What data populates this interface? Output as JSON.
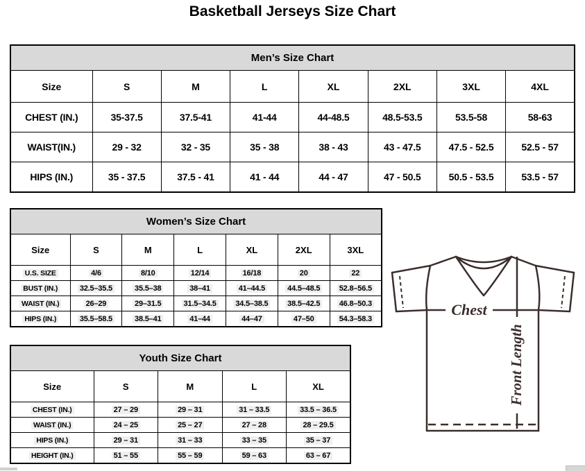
{
  "title": "Basketball Jerseys Size Chart",
  "tables": {
    "men": {
      "title": "Men’s Size Chart",
      "columns": [
        "Size",
        "S",
        "M",
        "L",
        "XL",
        "2XL",
        "3XL",
        "4XL"
      ],
      "rows": [
        {
          "label": "CHEST (IN.)",
          "values": [
            "35-37.5",
            "37.5-41",
            "41-44",
            "44-48.5",
            "48.5-53.5",
            "53.5-58",
            "58-63"
          ]
        },
        {
          "label": "WAIST(IN.)",
          "values": [
            "29 - 32",
            "32 - 35",
            "35 - 38",
            "38 - 43",
            "43 - 47.5",
            "47.5 - 52.5",
            "52.5 - 57"
          ]
        },
        {
          "label": "HIPS (IN.)",
          "values": [
            "35 - 37.5",
            "37.5 - 41",
            "41 - 44",
            "44 - 47",
            "47 - 50.5",
            "50.5 - 53.5",
            "53.5 - 57"
          ]
        }
      ]
    },
    "women": {
      "title": "Women’s Size Chart",
      "columns": [
        "Size",
        "S",
        "M",
        "L",
        "XL",
        "2XL",
        "3XL"
      ],
      "rows": [
        {
          "label": "U.S. SIZE",
          "values": [
            "4/6",
            "8/10",
            "12/14",
            "16/18",
            "20",
            "22"
          ]
        },
        {
          "label": "BUST (IN.)",
          "values": [
            "32.5–35.5",
            "35.5–38",
            "38–41",
            "41–44.5",
            "44.5–48.5",
            "52.8–56.5"
          ]
        },
        {
          "label": "WAIST (IN.)",
          "values": [
            "26–29",
            "29–31.5",
            "31.5–34.5",
            "34.5–38.5",
            "38.5–42.5",
            "46.8–50.3"
          ]
        },
        {
          "label": "HIPS (IN.)",
          "values": [
            "35.5–58.5",
            "38.5–41",
            "41–44",
            "44–47",
            "47–50",
            "54.3–58.3"
          ]
        }
      ]
    },
    "youth": {
      "title": "Youth Size Chart",
      "columns": [
        "Size",
        "S",
        "M",
        "L",
        "XL"
      ],
      "rows": [
        {
          "label": "CHEST (IN.)",
          "values": [
            "27 – 29",
            "29 – 31",
            "31 – 33.5",
            "33.5 – 36.5"
          ]
        },
        {
          "label": "WAIST (IN.)",
          "values": [
            "24 – 25",
            "25 – 27",
            "27 – 28",
            "28 – 29.5"
          ]
        },
        {
          "label": "HIPS (IN.)",
          "values": [
            "29 – 31",
            "31 – 33",
            "33 – 35",
            "35 – 37"
          ]
        },
        {
          "label": "HEIGHT (IN.)",
          "values": [
            "51 – 55",
            "55 – 59",
            "59 – 63",
            "63 – 67"
          ]
        }
      ]
    }
  },
  "diagram": {
    "chest_label": "Chest",
    "front_length_label": "Front Length"
  },
  "colors": {
    "header_band_bg": "#d9d9d9",
    "table_border": "#000000",
    "jersey_line": "#3a2e2c",
    "value_highlight": "#efefef"
  }
}
